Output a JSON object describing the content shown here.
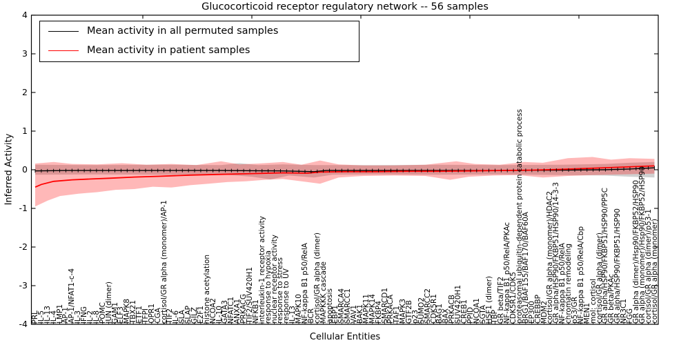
{
  "title": "Glucocorticoid receptor regulatory network -- 56 samples",
  "axes": {
    "ylabel": "Inferred Activity",
    "xlabel": "Cellular Entities",
    "yticks": [
      "4",
      "3",
      "2",
      "1",
      "0",
      "-1",
      "-2",
      "-3",
      "-4"
    ],
    "ylim": [
      -4,
      4
    ]
  },
  "legend": {
    "items": [
      {
        "label": "Mean activity in all permuted samples",
        "color": "#000000"
      },
      {
        "label": "Mean activity in patient samples",
        "color": "#ff0000"
      }
    ]
  },
  "chart_data": {
    "type": "line",
    "title": "Glucocorticoid receptor regulatory network -- 56 samples",
    "xlabel": "Cellular Entities",
    "ylabel": "Inferred Activity",
    "ylim": [
      -4,
      4
    ],
    "legend_position": "upper left",
    "grid": false,
    "colors": {
      "permuted_line": "#000000",
      "patient_line": "#ff0000",
      "permuted_band": "#bfbfbf",
      "patient_band": "#ff0000"
    },
    "categories": [
      "PRL",
      "IL-5",
      "IL-13",
      "IL-4",
      "LMP1",
      "AP-1",
      "AP-1/NFAT1-c-4",
      "IL-3",
      "IFNG",
      "IL-2",
      "IL-8",
      "POMC",
      "JUN (dimer)",
      "GAM1",
      "ELF3",
      "MAPK8",
      "TBX21",
      "ETF1",
      "TFPI",
      "OPR1",
      "CGA",
      "cortisol/GR alpha (monomer)/AP-1",
      "TIF2",
      "IL-6",
      "SLA",
      "SLAP",
      "GILZ",
      "E2F1",
      "histone acetylation",
      "NCOA2",
      "IL-10",
      "GATA3",
      "NFATC1",
      "ANXA1",
      "PRKACG",
      "TIF2/SUV420H1",
      "NFKB1",
      "interleukin-1 receptor activity",
      "response to hypoxia",
      "nuclear receptor activity",
      "response to stress",
      "response to UV",
      "IL-13",
      "MAPK10",
      "NF-kappa B1 p50/RelA",
      "BCR",
      "cortisol/GR alpha (dimer)",
      "MAPKKK cascade",
      "apoptosis",
      "EBP1",
      "SMARCA4",
      "SMARCC1",
      "VAV1",
      "BAK1",
      "MAPK11",
      "MAPK14",
      "FKBP4",
      "SMARCD1",
      "PRKACA",
      "TAF1",
      "MAPK3",
      "GTF2B",
      "p23",
      "SUMO2",
      "SMARCC2",
      "CDK5R1",
      "BAG1",
      "BAX",
      "PRKACB",
      "SUV420H1",
      "CREB1",
      "PPID",
      "NCOA1",
      "SGTA",
      "HSF1 (dimer)",
      "TBP",
      "GR beta/TIF2",
      "NF-kappa B1 p50/RelA/PKAc",
      "CDK5R1/CDK5",
      "proteasomal ubiquitin-dependent protein catabolic process",
      "BRG1/BAF155/BAF170/BAF60A",
      "EP300",
      "CREBBP",
      "MDM2",
      "cortisol/GR alpha (monomer)/HDAC2",
      "GR alpha/HSP90/FKBP51/HSP90/14-3-3",
      "NF-kappa B1 p50/RelA",
      "chromatin remodeling",
      "p53/GR",
      "NF-kappa B1 p50/RelA/Cbp",
      "MEN1",
      "mol: cortisol",
      "cortisol/GR alpha (dimer)",
      "GR alpha/HSP90/FKBP51/HSP90/PP5C",
      "GR beta/PKAc",
      "GR alpha/HSP90/FKBP51/HSP90",
      "NR3C1",
      "FGG",
      "GR alpha (dimer)/Hsp90/FKBP52/HSP90",
      "GR alpha (monomer)/Hsp90/FKBP52/HSP90",
      "cortisol/GR alpha (dimer)/p53-1",
      "cortisol/GR alpha (monomer)"
    ],
    "series": [
      {
        "name": "Mean activity in all permuted samples",
        "color": "#000000",
        "marker": "|",
        "points": [
          [
            0,
            -0.03
          ],
          [
            0.05,
            -0.02
          ],
          [
            0.1,
            -0.02
          ],
          [
            0.2,
            -0.02
          ],
          [
            0.3,
            -0.02
          ],
          [
            0.4,
            -0.03
          ],
          [
            0.45,
            -0.05
          ],
          [
            0.47,
            -0.02
          ],
          [
            0.55,
            -0.02
          ],
          [
            0.65,
            -0.02
          ],
          [
            0.75,
            -0.02
          ],
          [
            0.85,
            -0.01
          ],
          [
            0.92,
            0.0
          ],
          [
            0.96,
            0.02
          ],
          [
            1,
            0.05
          ]
        ]
      },
      {
        "name": "Mean activity in patient samples",
        "color": "#ff0000",
        "marker": "none",
        "points": [
          [
            0,
            -0.45
          ],
          [
            0.01,
            -0.38
          ],
          [
            0.03,
            -0.3
          ],
          [
            0.06,
            -0.26
          ],
          [
            0.09,
            -0.24
          ],
          [
            0.12,
            -0.22
          ],
          [
            0.16,
            -0.19
          ],
          [
            0.2,
            -0.17
          ],
          [
            0.25,
            -0.14
          ],
          [
            0.3,
            -0.12
          ],
          [
            0.35,
            -0.1
          ],
          [
            0.4,
            -0.08
          ],
          [
            0.44,
            -0.09
          ],
          [
            0.46,
            -0.06
          ],
          [
            0.5,
            -0.05
          ],
          [
            0.55,
            -0.05
          ],
          [
            0.6,
            -0.04
          ],
          [
            0.65,
            -0.04
          ],
          [
            0.7,
            -0.03
          ],
          [
            0.75,
            -0.02
          ],
          [
            0.8,
            -0.01
          ],
          [
            0.85,
            0.01
          ],
          [
            0.9,
            0.04
          ],
          [
            0.95,
            0.07
          ],
          [
            1,
            0.1
          ]
        ]
      }
    ],
    "bands": [
      {
        "name": "permuted-range",
        "color": "#aaaaaa",
        "opacity": 0.55,
        "upper": [
          [
            0,
            0.13
          ],
          [
            0.1,
            0.12
          ],
          [
            0.2,
            0.13
          ],
          [
            0.3,
            0.12
          ],
          [
            0.33,
            0.17
          ],
          [
            0.36,
            0.12
          ],
          [
            0.4,
            0.14
          ],
          [
            0.45,
            0.12
          ],
          [
            0.55,
            0.12
          ],
          [
            0.65,
            0.13
          ],
          [
            0.75,
            0.12
          ],
          [
            0.85,
            0.13
          ],
          [
            0.92,
            0.15
          ],
          [
            0.96,
            0.18
          ],
          [
            1,
            0.2
          ]
        ],
        "lower": [
          [
            0,
            -0.13
          ],
          [
            0.1,
            -0.12
          ],
          [
            0.2,
            -0.13
          ],
          [
            0.3,
            -0.12
          ],
          [
            0.35,
            -0.18
          ],
          [
            0.38,
            -0.25
          ],
          [
            0.41,
            -0.15
          ],
          [
            0.45,
            -0.2
          ],
          [
            0.48,
            -0.13
          ],
          [
            0.55,
            -0.12
          ],
          [
            0.65,
            -0.13
          ],
          [
            0.75,
            -0.12
          ],
          [
            0.85,
            -0.14
          ],
          [
            0.92,
            -0.15
          ],
          [
            0.96,
            -0.18
          ],
          [
            1,
            -0.2
          ]
        ]
      },
      {
        "name": "patient-range",
        "color": "#ff0000",
        "opacity": 0.28,
        "upper": [
          [
            0,
            0.16
          ],
          [
            0.03,
            0.2
          ],
          [
            0.06,
            0.15
          ],
          [
            0.1,
            0.14
          ],
          [
            0.14,
            0.17
          ],
          [
            0.18,
            0.13
          ],
          [
            0.22,
            0.15
          ],
          [
            0.26,
            0.12
          ],
          [
            0.3,
            0.22
          ],
          [
            0.33,
            0.14
          ],
          [
            0.36,
            0.16
          ],
          [
            0.4,
            0.2
          ],
          [
            0.43,
            0.13
          ],
          [
            0.46,
            0.24
          ],
          [
            0.49,
            0.14
          ],
          [
            0.53,
            0.11
          ],
          [
            0.58,
            0.11
          ],
          [
            0.63,
            0.13
          ],
          [
            0.68,
            0.22
          ],
          [
            0.71,
            0.15
          ],
          [
            0.75,
            0.13
          ],
          [
            0.79,
            0.2
          ],
          [
            0.82,
            0.18
          ],
          [
            0.86,
            0.3
          ],
          [
            0.9,
            0.33
          ],
          [
            0.93,
            0.26
          ],
          [
            0.96,
            0.3
          ],
          [
            1,
            0.28
          ]
        ],
        "lower": [
          [
            0,
            -0.95
          ],
          [
            0.02,
            -0.8
          ],
          [
            0.04,
            -0.68
          ],
          [
            0.07,
            -0.62
          ],
          [
            0.1,
            -0.58
          ],
          [
            0.13,
            -0.52
          ],
          [
            0.16,
            -0.5
          ],
          [
            0.19,
            -0.44
          ],
          [
            0.22,
            -0.46
          ],
          [
            0.25,
            -0.4
          ],
          [
            0.28,
            -0.36
          ],
          [
            0.31,
            -0.32
          ],
          [
            0.34,
            -0.3
          ],
          [
            0.37,
            -0.26
          ],
          [
            0.4,
            -0.24
          ],
          [
            0.43,
            -0.3
          ],
          [
            0.46,
            -0.36
          ],
          [
            0.49,
            -0.2
          ],
          [
            0.53,
            -0.16
          ],
          [
            0.58,
            -0.15
          ],
          [
            0.63,
            -0.16
          ],
          [
            0.67,
            -0.26
          ],
          [
            0.7,
            -0.18
          ],
          [
            0.74,
            -0.15
          ],
          [
            0.78,
            -0.14
          ],
          [
            0.82,
            -0.2
          ],
          [
            0.86,
            -0.16
          ],
          [
            0.9,
            -0.14
          ],
          [
            0.95,
            -0.12
          ],
          [
            1,
            -0.1
          ]
        ]
      }
    ]
  }
}
